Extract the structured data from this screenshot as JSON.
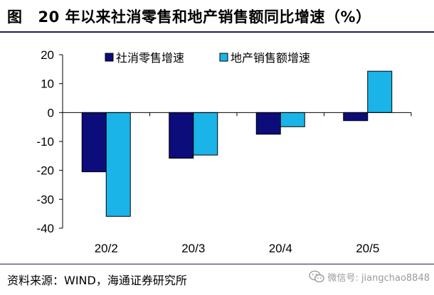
{
  "header": {
    "figure_label": "图",
    "title": "20 年以来社消零售和地产销售额同比增速（%）"
  },
  "footer": {
    "source": "资料来源：WIND，海通证券研究所",
    "watermark": "微信号: jiangchao8848"
  },
  "colors": {
    "rule": "#1f1f5c",
    "series_1": "#0c0c7a",
    "series_2": "#1ab4e8",
    "watermark": "#9a9a9a"
  },
  "chart_data": {
    "type": "bar",
    "categories": [
      "20/2",
      "20/3",
      "20/4",
      "20/5"
    ],
    "series": [
      {
        "name": "社消零售增速",
        "values": [
          -20.5,
          -15.8,
          -7.5,
          -2.8
        ]
      },
      {
        "name": "地产销售额增速",
        "values": [
          -35.9,
          -14.7,
          -4.9,
          14.3
        ]
      }
    ],
    "ylim": [
      -40,
      20
    ],
    "yticks": [
      -40,
      -30,
      -20,
      -10,
      0,
      10,
      20
    ],
    "yticklabels": [
      "-40",
      "-30",
      "-20",
      "-10",
      "0",
      "10",
      "20"
    ],
    "legend_position": "top",
    "grid": false
  }
}
